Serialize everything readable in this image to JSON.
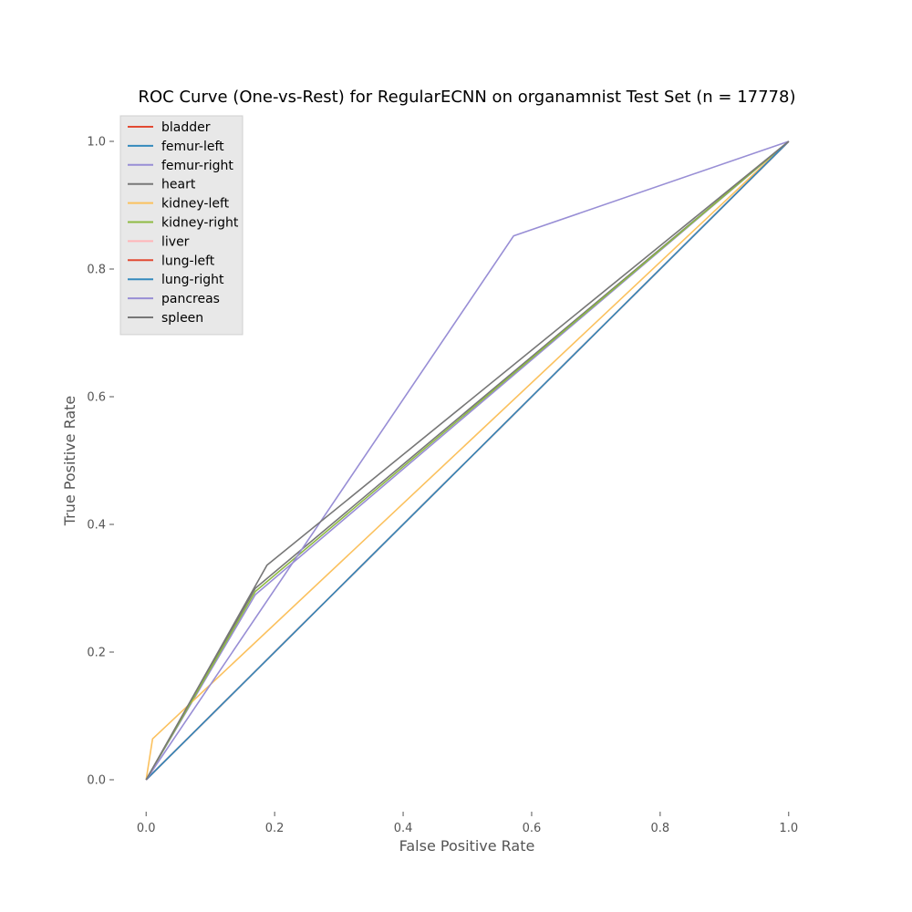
{
  "chart_data": {
    "type": "line",
    "title": "ROC Curve (One-vs-Rest) for RegularECNN on organamnist Test Set (n = 17778)",
    "xlabel": "False Positive Rate",
    "ylabel": "True Positive Rate",
    "xlim": [
      -0.05,
      1.05
    ],
    "ylim": [
      -0.05,
      1.05
    ],
    "xticks": [
      "0.0",
      "0.2",
      "0.4",
      "0.6",
      "0.8",
      "1.0"
    ],
    "yticks": [
      "0.0",
      "0.2",
      "0.4",
      "0.6",
      "0.8",
      "1.0"
    ],
    "legend_position": "top-left",
    "grid": false,
    "series": [
      {
        "name": "bladder",
        "color": "#e24a33",
        "x": [
          0,
          1
        ],
        "y": [
          0,
          1
        ]
      },
      {
        "name": "femur-left",
        "color": "#348abd",
        "x": [
          0,
          1
        ],
        "y": [
          0,
          1
        ]
      },
      {
        "name": "femur-right",
        "color": "#988ed5",
        "x": [
          0,
          0.17,
          1
        ],
        "y": [
          0,
          0.29,
          1
        ]
      },
      {
        "name": "heart",
        "color": "#777777",
        "x": [
          0,
          0.17,
          1
        ],
        "y": [
          0,
          0.3,
          1
        ]
      },
      {
        "name": "kidney-left",
        "color": "#fbc15e",
        "x": [
          0,
          0.01,
          1
        ],
        "y": [
          0,
          0.064,
          1
        ]
      },
      {
        "name": "kidney-right",
        "color": "#8eba42",
        "x": [
          0,
          0.17,
          1
        ],
        "y": [
          0,
          0.295,
          1
        ]
      },
      {
        "name": "liver",
        "color": "#ffb5b8",
        "x": [
          0,
          1
        ],
        "y": [
          0,
          1
        ]
      },
      {
        "name": "lung-left",
        "color": "#e24a33",
        "x": [
          0,
          1
        ],
        "y": [
          0,
          1
        ]
      },
      {
        "name": "lung-right",
        "color": "#348abd",
        "x": [
          0,
          1
        ],
        "y": [
          0,
          1
        ]
      },
      {
        "name": "pancreas",
        "color": "#988ed5",
        "x": [
          0,
          0.572,
          1
        ],
        "y": [
          0,
          0.852,
          1
        ]
      },
      {
        "name": "spleen",
        "color": "#777777",
        "x": [
          0,
          0.188,
          1
        ],
        "y": [
          0,
          0.336,
          1
        ]
      }
    ]
  }
}
